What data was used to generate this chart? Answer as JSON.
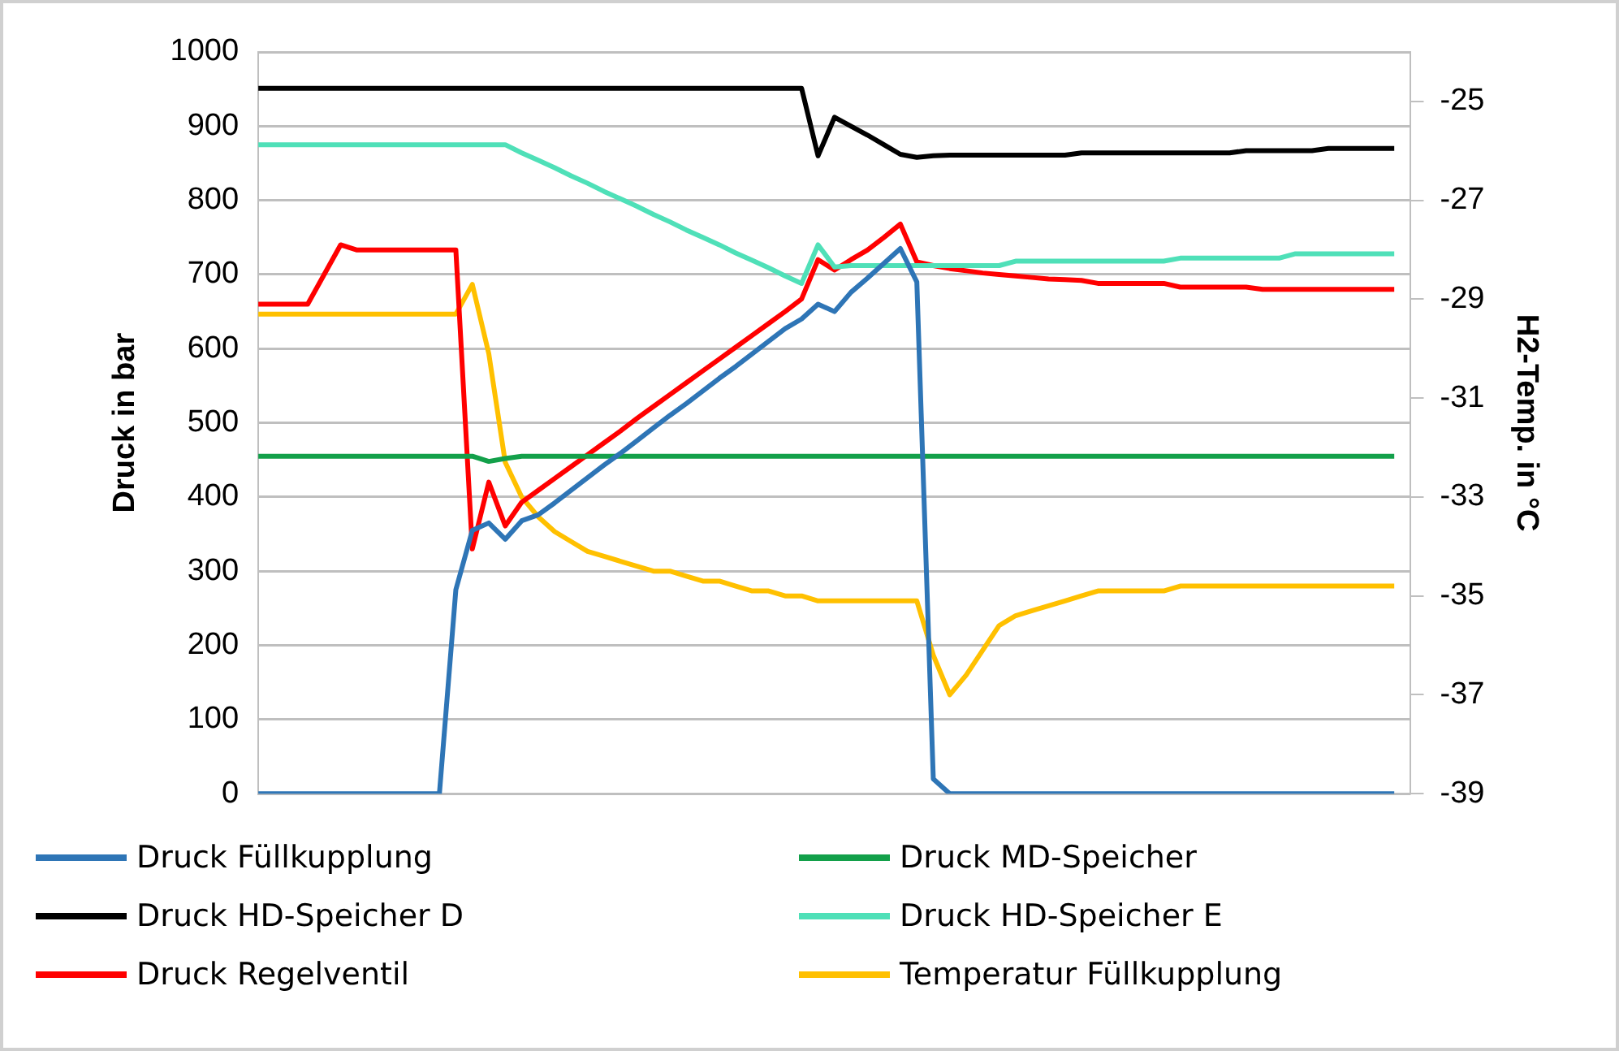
{
  "chart_data": {
    "type": "line",
    "ylabel": "Druck in bar",
    "y2label": "H2-Temp. in °C",
    "categories": [
      null,
      null,
      null,
      null,
      null,
      null,
      null,
      null,
      null,
      null,
      null,
      null,
      null,
      null,
      null,
      null,
      null,
      null,
      null,
      null,
      null,
      null,
      null,
      null,
      null,
      null,
      null,
      null,
      null,
      null,
      null,
      null,
      null,
      null,
      null,
      null,
      null,
      null,
      null,
      null,
      null,
      null,
      null,
      null,
      null,
      null,
      null,
      null,
      null,
      null,
      null,
      null,
      null,
      null,
      null,
      null,
      null,
      null,
      null,
      null,
      null,
      null,
      null,
      null,
      null,
      null,
      null,
      null,
      null,
      null,
      null
    ],
    "series": [
      {
        "name": "Druck Füllkupplung",
        "color": "#2e75b6",
        "values": [
          0,
          0,
          0,
          0,
          0,
          0,
          0,
          0,
          0,
          0,
          0,
          0,
          275,
          355,
          365,
          343,
          368,
          376,
          392,
          409,
          426,
          443,
          459,
          476,
          493,
          510,
          526,
          543,
          560,
          576,
          593,
          610,
          627,
          640,
          660,
          650,
          676,
          695,
          715,
          735,
          690,
          20,
          0,
          0,
          0,
          0,
          0,
          0,
          0,
          0,
          0,
          0,
          0,
          0,
          0,
          0,
          0,
          0,
          0,
          0,
          0,
          0,
          0,
          0,
          0,
          0,
          0,
          0,
          0,
          0,
          null
        ]
      },
      {
        "name": "Druck MD-Speicher",
        "color": "#13a04a",
        "values": [
          455,
          455,
          455,
          455,
          455,
          455,
          455,
          455,
          455,
          455,
          455,
          455,
          455,
          455,
          448,
          452,
          455,
          455,
          455,
          455,
          455,
          455,
          455,
          455,
          455,
          455,
          455,
          455,
          455,
          455,
          455,
          455,
          455,
          455,
          455,
          455,
          455,
          455,
          455,
          455,
          455,
          455,
          455,
          455,
          455,
          455,
          455,
          455,
          455,
          455,
          455,
          455,
          455,
          455,
          455,
          455,
          455,
          455,
          455,
          455,
          455,
          455,
          455,
          455,
          455,
          455,
          455,
          455,
          455,
          455,
          null
        ]
      },
      {
        "name": "Druck HD-Speicher D",
        "color": "#000000",
        "values": [
          951,
          951,
          951,
          951,
          951,
          951,
          951,
          951,
          951,
          951,
          951,
          951,
          951,
          951,
          951,
          951,
          951,
          951,
          951,
          951,
          951,
          951,
          951,
          951,
          951,
          951,
          951,
          951,
          951,
          951,
          951,
          951,
          951,
          951,
          860,
          912,
          900,
          888,
          875,
          862,
          858,
          860,
          861,
          861,
          861,
          861,
          861,
          861,
          861,
          861,
          864,
          864,
          864,
          864,
          864,
          864,
          864,
          864,
          864,
          864,
          867,
          867,
          867,
          867,
          867,
          870,
          870,
          870,
          870,
          870,
          null
        ]
      },
      {
        "name": "Druck HD-Speicher E",
        "color": "#4fe0b8",
        "values": [
          875,
          875,
          875,
          875,
          875,
          875,
          875,
          875,
          875,
          875,
          875,
          875,
          875,
          875,
          875,
          875,
          864,
          854,
          844,
          833,
          823,
          812,
          802,
          792,
          781,
          771,
          760,
          750,
          740,
          729,
          719,
          709,
          698,
          688,
          740,
          710,
          712,
          712,
          712,
          712,
          712,
          712,
          712,
          712,
          712,
          712,
          718,
          718,
          718,
          718,
          718,
          718,
          718,
          718,
          718,
          718,
          722,
          722,
          722,
          722,
          722,
          722,
          722,
          728,
          728,
          728,
          728,
          728,
          728,
          728,
          null
        ]
      },
      {
        "name": "Druck Regelventil",
        "color": "#ff0000",
        "values": [
          660,
          660,
          660,
          660,
          700,
          740,
          733,
          733,
          733,
          733,
          733,
          733,
          733,
          330,
          420,
          361,
          393,
          409,
          425,
          441,
          457,
          473,
          489,
          506,
          522,
          538,
          554,
          570,
          586,
          602,
          618,
          634,
          650,
          667,
          720,
          706,
          720,
          733,
          750,
          768,
          717,
          712,
          708,
          705,
          702,
          700,
          698,
          696,
          694,
          693,
          692,
          688,
          688,
          688,
          688,
          688,
          683,
          683,
          683,
          683,
          683,
          680,
          680,
          680,
          680,
          680,
          680,
          680,
          680,
          680,
          null
        ]
      },
      {
        "name": "Temperatur Füllkupplung",
        "color": "#ffc000",
        "axis": "y2",
        "values": [
          -29.3,
          -29.3,
          -29.3,
          -29.3,
          -29.3,
          -29.3,
          -29.3,
          -29.3,
          -29.3,
          -29.3,
          -29.3,
          -29.3,
          -29.3,
          -28.7,
          -30.1,
          -32.3,
          -33.0,
          -33.4,
          -33.7,
          -33.9,
          -34.1,
          -34.2,
          -34.3,
          -34.4,
          -34.5,
          -34.5,
          -34.6,
          -34.7,
          -34.7,
          -34.8,
          -34.9,
          -34.9,
          -35.0,
          -35.0,
          -35.1,
          -35.1,
          -35.1,
          -35.1,
          -35.1,
          -35.1,
          -35.1,
          -36.2,
          -37.0,
          -36.6,
          -36.1,
          -35.6,
          -35.4,
          -35.3,
          -35.2,
          -35.1,
          -35.0,
          -34.9,
          -34.9,
          -34.9,
          -34.9,
          -34.9,
          -34.8,
          -34.8,
          -34.8,
          -34.8,
          -34.8,
          -34.8,
          -34.8,
          -34.8,
          -34.8,
          -34.8,
          -34.8,
          -34.8,
          -34.8,
          -34.8,
          null
        ]
      }
    ],
    "ylim": [
      0,
      1000
    ],
    "yticks": [
      0,
      100,
      200,
      300,
      400,
      500,
      600,
      700,
      800,
      900,
      1000
    ],
    "y2lim": [
      -39,
      -24
    ],
    "y2ticks": [
      -39,
      -37,
      -35,
      -33,
      -31,
      -29,
      -27,
      -25
    ],
    "grid": "y",
    "legend": "bottom",
    "tick_labels": "y",
    "marker": "none",
    "line_style": "solid"
  }
}
